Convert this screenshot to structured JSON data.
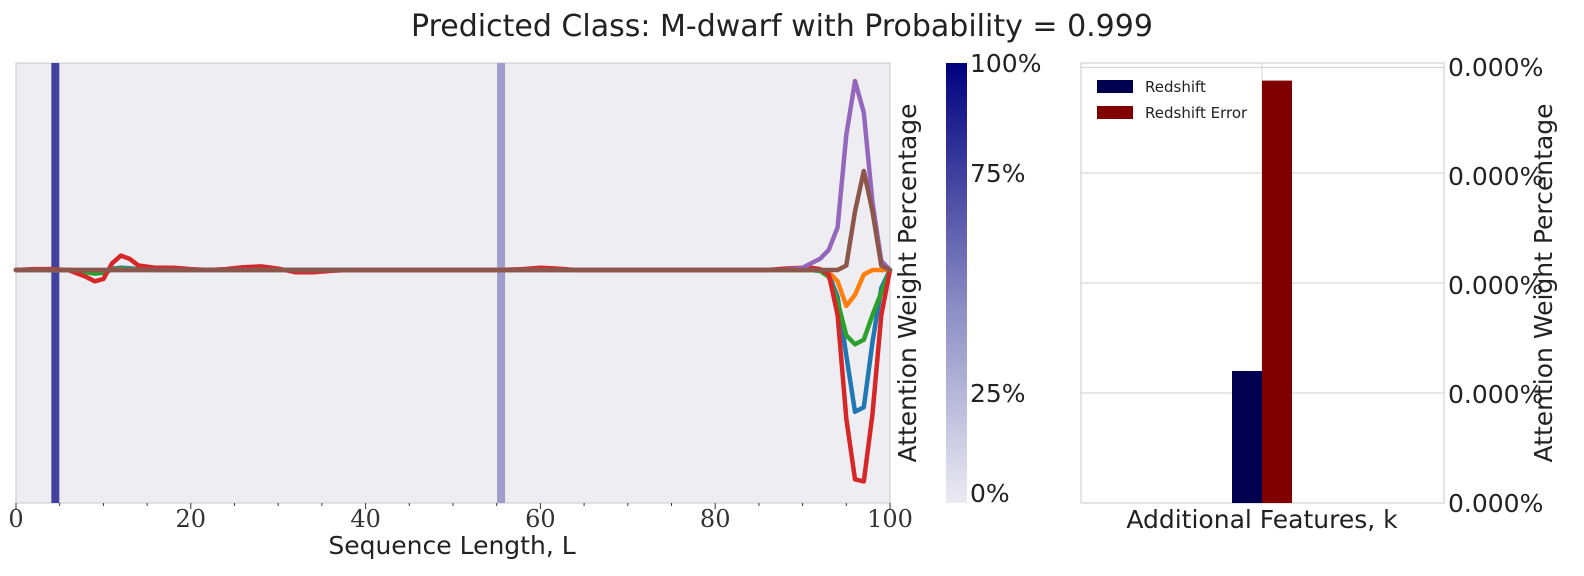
{
  "title": "Predicted Class: M-dwarf with Probability = 0.999",
  "chart_data": [
    {
      "type": "line",
      "xlabel": "Sequence Length, L",
      "xlim": [
        0,
        100
      ],
      "x_ticks": [
        "0",
        "20",
        "40",
        "60",
        "80",
        "100"
      ],
      "grid": false,
      "attention_bars": [
        {
          "x": 4.5,
          "weight": 0.72
        },
        {
          "x": 55.5,
          "weight": 0.33
        }
      ],
      "x": [
        0,
        2,
        4,
        6,
        8,
        9,
        10,
        11,
        12,
        13,
        14,
        16,
        18,
        20,
        22,
        24,
        26,
        28,
        30,
        32,
        34,
        36,
        38,
        40,
        45,
        50,
        55,
        58,
        60,
        62,
        64,
        66,
        68,
        70,
        72,
        74,
        76,
        78,
        80,
        82,
        84,
        86,
        88,
        90,
        91,
        92,
        93,
        94,
        95,
        96,
        97,
        98,
        99,
        100
      ],
      "series": [
        {
          "color": "#1f77b4",
          "values": [
            0,
            0,
            0,
            0,
            -0.02,
            -0.03,
            -0.02,
            0.03,
            0.05,
            0.04,
            0.02,
            0.01,
            0.01,
            0,
            0,
            0,
            0,
            0,
            0,
            0,
            0,
            0,
            0,
            0,
            0,
            0,
            0,
            0,
            0,
            0,
            0,
            0,
            0,
            0,
            0,
            0,
            0,
            0,
            0,
            0,
            0,
            0,
            0,
            0,
            0,
            -0.02,
            -0.1,
            -0.6,
            -1.9,
            -3.15,
            -3.05,
            -1.6,
            -0.4,
            0
          ]
        },
        {
          "color": "#ff7f0e",
          "values": [
            0,
            0,
            0,
            0,
            -0.02,
            -0.03,
            -0.02,
            0.02,
            0.03,
            0.02,
            0.01,
            0,
            0,
            0,
            0,
            0,
            0,
            0,
            0,
            0,
            0,
            0,
            0,
            0,
            0,
            0,
            0,
            0,
            0,
            0,
            0,
            0,
            0,
            0,
            0,
            0,
            0,
            0,
            0,
            0,
            0,
            0,
            0,
            0,
            0,
            0,
            -0.05,
            -0.25,
            -0.8,
            -0.55,
            -0.1,
            0,
            0,
            0
          ]
        },
        {
          "color": "#2ca02c",
          "values": [
            0,
            0,
            0,
            0,
            -0.05,
            -0.08,
            -0.06,
            0.01,
            0.03,
            0.02,
            0.01,
            0,
            0,
            0,
            0,
            0,
            0,
            0,
            0,
            0,
            0,
            0,
            0,
            0,
            0,
            0,
            0,
            0,
            0,
            0,
            0,
            0,
            0,
            0,
            0,
            0,
            0,
            0,
            0,
            0,
            0,
            0,
            0,
            0,
            0,
            -0.02,
            -0.15,
            -0.7,
            -1.45,
            -1.65,
            -1.55,
            -1.0,
            -0.5,
            0
          ]
        },
        {
          "color": "#d62728",
          "values": [
            0,
            0.02,
            0.02,
            0,
            -0.15,
            -0.25,
            -0.2,
            0.15,
            0.32,
            0.25,
            0.1,
            0.05,
            0.05,
            0.02,
            0,
            0.02,
            0.06,
            0.08,
            0.03,
            -0.05,
            -0.05,
            -0.02,
            0,
            0,
            0,
            0,
            0,
            0.02,
            0.05,
            0.03,
            0,
            0,
            0,
            0,
            0,
            0,
            0,
            0,
            0,
            0,
            0,
            0,
            0.03,
            0.05,
            0.05,
            0.02,
            -0.1,
            -1.0,
            -3.3,
            -4.65,
            -4.7,
            -3.2,
            -1.0,
            0
          ]
        },
        {
          "color": "#9467bd",
          "values": [
            0,
            0,
            0,
            0,
            0,
            0,
            0,
            0,
            0,
            0,
            0,
            0,
            0,
            0,
            0,
            0,
            0,
            0,
            0,
            0,
            0,
            0,
            0,
            0,
            0,
            0,
            0,
            0,
            0,
            0,
            0,
            0,
            0,
            0,
            0,
            0,
            0,
            0,
            0,
            0,
            0,
            0,
            0,
            0.05,
            0.15,
            0.25,
            0.45,
            0.95,
            3.0,
            4.2,
            3.5,
            1.5,
            0.2,
            0
          ]
        },
        {
          "color": "#8c564b",
          "values": [
            0,
            0,
            0,
            0,
            0,
            0,
            0,
            0,
            0,
            0,
            0,
            0,
            0,
            0,
            0,
            0,
            0,
            0,
            0,
            0,
            0,
            0,
            0,
            0,
            0,
            0,
            0,
            0,
            0,
            0,
            0,
            0,
            0,
            0,
            0,
            0,
            0,
            0,
            0,
            0,
            0,
            0,
            0,
            0,
            0,
            0,
            0,
            0,
            0.1,
            1.3,
            2.2,
            1.3,
            0.1,
            0
          ]
        }
      ]
    },
    {
      "type": "bar",
      "xlabel": "Additional Features, k",
      "ylabel": "Attention Weight Percentage",
      "ytick_labels": [
        "0.000%",
        "0.000%",
        "0.000%",
        "0.000%",
        "0.000%"
      ],
      "legend_location": "upper-left",
      "series": [
        {
          "name": "Redshift",
          "color": "#000050",
          "value": 0.3
        },
        {
          "name": "Redshift Error",
          "color": "#800000",
          "value": 0.96
        }
      ]
    }
  ],
  "colorbar": {
    "label": "Attention Weight Percentage",
    "tick_labels": [
      "100%",
      "75%",
      "25%",
      "0%"
    ],
    "tick_values": [
      1.0,
      0.75,
      0.25,
      0.0
    ],
    "color_low": "#ecebf2",
    "color_high": "#00007f"
  }
}
